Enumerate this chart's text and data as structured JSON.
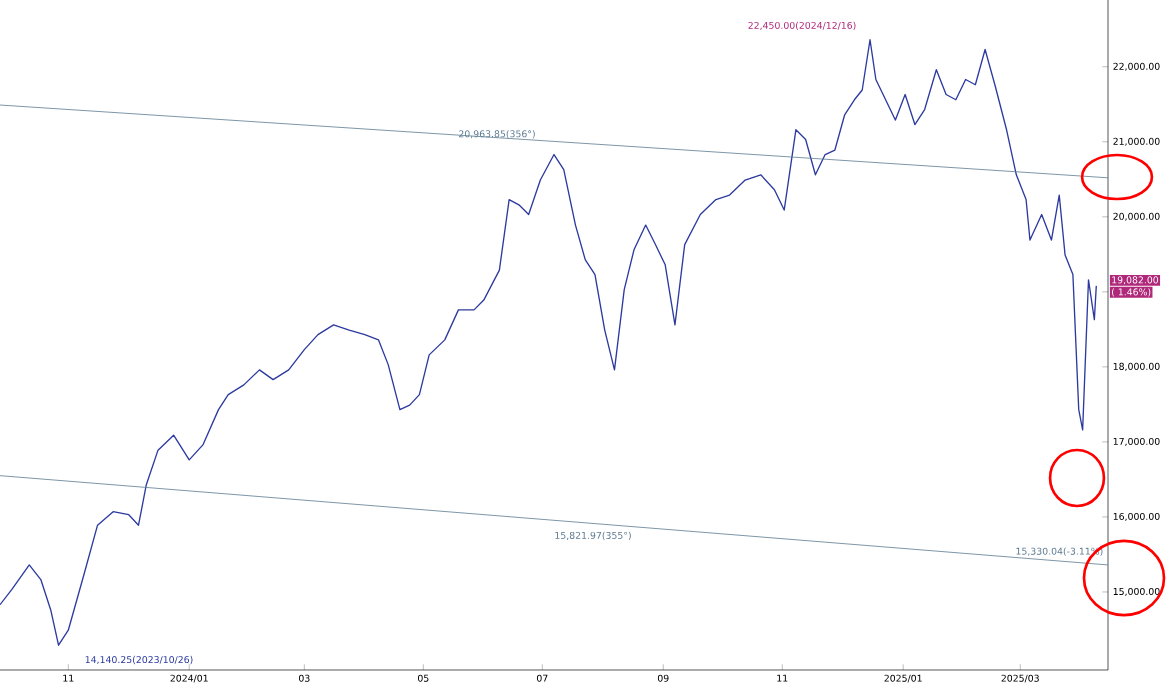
{
  "chart_data": {
    "type": "line",
    "x": [
      "2023-09-27",
      "2023-10-03",
      "2023-10-12",
      "2023-10-18",
      "2023-10-23",
      "2023-10-27",
      "2023-11-01",
      "2023-11-09",
      "2023-11-16",
      "2023-11-24",
      "2023-12-02",
      "2023-12-07",
      "2023-12-11",
      "2023-12-17",
      "2023-12-25",
      "2024-01-02",
      "2024-01-09",
      "2024-01-17",
      "2024-01-22",
      "2024-01-30",
      "2024-02-07",
      "2024-02-14",
      "2024-02-22",
      "2024-03-01",
      "2024-03-08",
      "2024-03-16",
      "2024-03-24",
      "2024-04-01",
      "2024-04-08",
      "2024-04-13",
      "2024-04-19",
      "2024-04-24",
      "2024-04-29",
      "2024-05-04",
      "2024-05-12",
      "2024-05-19",
      "2024-05-27",
      "2024-06-01",
      "2024-06-09",
      "2024-06-14",
      "2024-06-19",
      "2024-06-24",
      "2024-06-30",
      "2024-07-07",
      "2024-07-12",
      "2024-07-18",
      "2024-07-23",
      "2024-07-28",
      "2024-08-02",
      "2024-08-07",
      "2024-08-12",
      "2024-08-17",
      "2024-08-23",
      "2024-08-28",
      "2024-09-02",
      "2024-09-07",
      "2024-09-12",
      "2024-09-20",
      "2024-09-28",
      "2024-10-05",
      "2024-10-13",
      "2024-10-21",
      "2024-10-28",
      "2024-11-02",
      "2024-11-08",
      "2024-11-13",
      "2024-11-18",
      "2024-11-23",
      "2024-11-28",
      "2024-12-03",
      "2024-12-08",
      "2024-12-12",
      "2024-12-16",
      "2024-12-19",
      "2024-12-24",
      "2024-12-29",
      "2025-01-03",
      "2025-01-08",
      "2025-01-13",
      "2025-01-19",
      "2025-01-24",
      "2025-01-29",
      "2025-02-03",
      "2025-02-08",
      "2025-02-13",
      "2025-02-18",
      "2025-02-24",
      "2025-03-01",
      "2025-03-06",
      "2025-03-08",
      "2025-03-14",
      "2025-03-19",
      "2025-03-23",
      "2025-03-26",
      "2025-03-30",
      "2025-04-02",
      "2025-04-04",
      "2025-04-07",
      "2025-04-10",
      "2025-04-11"
    ],
    "series": [
      {
        "color": "#2c3aa0",
        "values": [
          14830,
          15030,
          15360,
          15160,
          14760,
          14290,
          14490,
          15230,
          15890,
          16070,
          16030,
          15890,
          16430,
          16890,
          17090,
          16760,
          16960,
          17430,
          17630,
          17760,
          17960,
          17830,
          17960,
          18230,
          18430,
          18560,
          18490,
          18430,
          18360,
          18030,
          17430,
          17490,
          17630,
          18160,
          18360,
          18760,
          18760,
          18890,
          19290,
          20230,
          20160,
          20030,
          20490,
          20830,
          20630,
          19890,
          19430,
          19230,
          18490,
          17960,
          19030,
          19560,
          19890,
          19630,
          19360,
          18560,
          19630,
          20030,
          20230,
          20290,
          20490,
          20560,
          20360,
          20090,
          21160,
          21030,
          20560,
          20830,
          20890,
          21360,
          21560,
          21690,
          22360,
          21830,
          21560,
          21290,
          21630,
          21230,
          21430,
          21960,
          21630,
          21560,
          21830,
          21760,
          22230,
          21760,
          21160,
          20560,
          20230,
          19690,
          20030,
          19690,
          20290,
          19490,
          19230,
          17430,
          17160,
          19160,
          18630,
          19080
        ]
      },
      {
        "color": "#5d7b91",
        "x": [
          "2023-09-27",
          "2025-04-17"
        ],
        "values": [
          21490,
          20520
        ]
      },
      {
        "color": "#5d7b91",
        "x": [
          "2023-09-27",
          "2025-04-17"
        ],
        "values": [
          16550,
          15360
        ]
      }
    ],
    "xlim": [
      "2023-09-27",
      "2025-04-17"
    ],
    "ylim": [
      13960,
      22890
    ],
    "xticks": [
      {
        "value": "2023-11-01",
        "label": "11"
      },
      {
        "value": "2024-01-02",
        "label": "2024/01"
      },
      {
        "value": "2024-03-01",
        "label": "03"
      },
      {
        "value": "2024-05-01",
        "label": "05"
      },
      {
        "value": "2024-07-01",
        "label": "07"
      },
      {
        "value": "2024-09-01",
        "label": "09"
      },
      {
        "value": "2024-11-01",
        "label": "11"
      },
      {
        "value": "2025-01-02",
        "label": "2025/01"
      },
      {
        "value": "2025-03-03",
        "label": "2025/03"
      }
    ],
    "yticks": [
      {
        "value": 15000,
        "label": "15,000.00"
      },
      {
        "value": 16000,
        "label": "16,000.00"
      },
      {
        "value": 17000,
        "label": "17,000.00"
      },
      {
        "value": 18000,
        "label": "18,000.00"
      },
      {
        "value": 19000,
        "label": null
      },
      {
        "value": 20000,
        "label": "20,000.00"
      },
      {
        "value": 21000,
        "label": "21,000.00"
      },
      {
        "value": 22000,
        "label": "22,000.00"
      }
    ],
    "annotations": [
      "22,450.00(2024/12/16)",
      {
        "text": "20,963.85(356°)",
        "x": "2024-06-30",
        "y": 20963.85
      },
      "15,821.97(355°)",
      {
        "text": "15,330.04(-3.11%)",
        "x": "2025-04-17",
        "y": 15330.04
      },
      "14,140.25(2023/10/26)",
      {
        "text": "19,082.00",
        "x": "2025-04-11",
        "y": 19082
      },
      {
        "text": "( 1.46%)",
        "x": "2025-04-11",
        "y": 19082
      }
    ]
  }
}
